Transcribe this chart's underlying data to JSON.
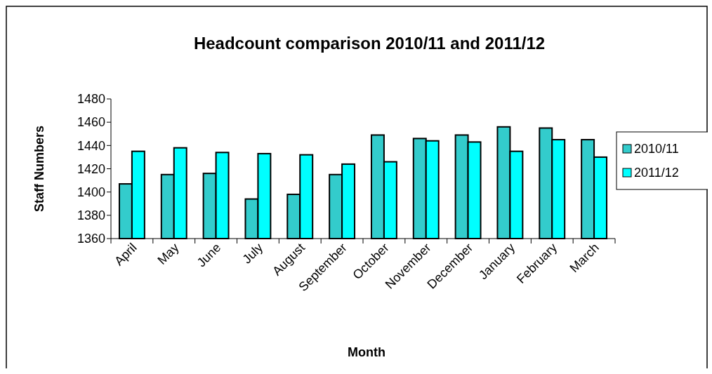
{
  "chart_data": {
    "type": "bar",
    "title": "Headcount comparison 2010/11 and 2011/12",
    "xlabel": "Month",
    "ylabel": "Staff Numbers",
    "categories": [
      "April",
      "May",
      "June",
      "July",
      "August",
      "September",
      "October",
      "November",
      "December",
      "January",
      "February",
      "March"
    ],
    "series": [
      {
        "name": "2010/11",
        "color": "#33cccc",
        "values": [
          1407,
          1415,
          1416,
          1394,
          1398,
          1415,
          1449,
          1446,
          1449,
          1456,
          1455,
          1445
        ]
      },
      {
        "name": "2011/12",
        "color": "#00ffff",
        "values": [
          1435,
          1438,
          1434,
          1433,
          1432,
          1424,
          1426,
          1444,
          1443,
          1435,
          1445,
          1430
        ]
      }
    ],
    "ylim": [
      1360,
      1480
    ],
    "yticks": [
      1360,
      1380,
      1400,
      1420,
      1440,
      1460,
      1480
    ],
    "grid": false,
    "legend": "right"
  }
}
